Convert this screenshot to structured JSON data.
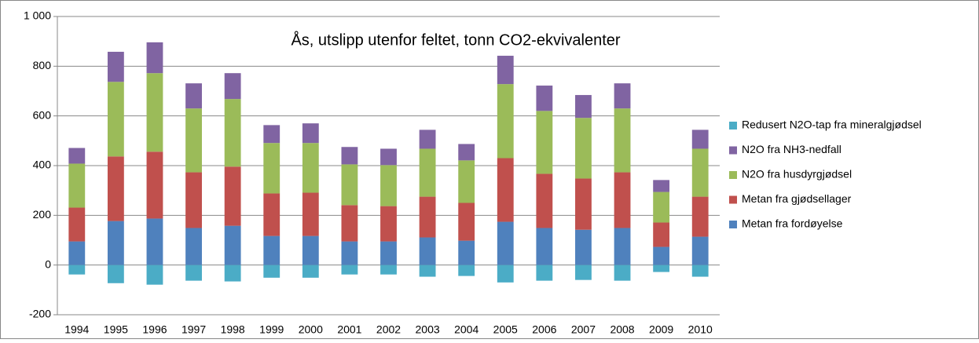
{
  "chart_data": {
    "type": "stacked-bar",
    "title": "Ås, utslipp utenfor feltet, tonn CO2-ekvivalenter",
    "categories": [
      "1994",
      "1995",
      "1996",
      "1997",
      "1998",
      "1999",
      "2000",
      "2001",
      "2002",
      "2003",
      "2004",
      "2005",
      "2006",
      "2007",
      "2008",
      "2009",
      "2010"
    ],
    "series": [
      {
        "name": "Metan fra fordøyelse",
        "color": "#4f81bd",
        "values": [
          95,
          177,
          187,
          149,
          158,
          117,
          117,
          95,
          95,
          111,
          98,
          174,
          149,
          142,
          149,
          73,
          114
        ]
      },
      {
        "name": "Metan fra gjødsellager",
        "color": "#c0504d",
        "values": [
          136,
          260,
          269,
          224,
          238,
          171,
          174,
          146,
          142,
          164,
          152,
          256,
          218,
          206,
          224,
          98,
          161
        ]
      },
      {
        "name": "N2O fra husdyrgjødsel",
        "color": "#9bbb59",
        "values": [
          177,
          300,
          316,
          257,
          272,
          203,
          200,
          164,
          165,
          193,
          171,
          298,
          253,
          244,
          257,
          123,
          193
        ]
      },
      {
        "name": "N2O fra NH3-nedfall",
        "color": "#8064a2",
        "values": [
          63,
          121,
          124,
          101,
          104,
          72,
          79,
          70,
          66,
          76,
          66,
          114,
          102,
          92,
          101,
          48,
          76
        ]
      },
      {
        "name": "Redusert N2O-tap fra mineralgjødsel",
        "color": "#4bacc6",
        "values": [
          -38,
          -73,
          -79,
          -63,
          -66,
          -51,
          -51,
          -38,
          -38,
          -47,
          -44,
          -70,
          -63,
          -60,
          -63,
          -28,
          -47
        ]
      }
    ],
    "ylim": [
      -200,
      1000
    ],
    "yticks": [
      -200,
      0,
      200,
      400,
      600,
      800,
      {
        "value": 1000,
        "label": "1 000"
      }
    ],
    "grid": true
  }
}
